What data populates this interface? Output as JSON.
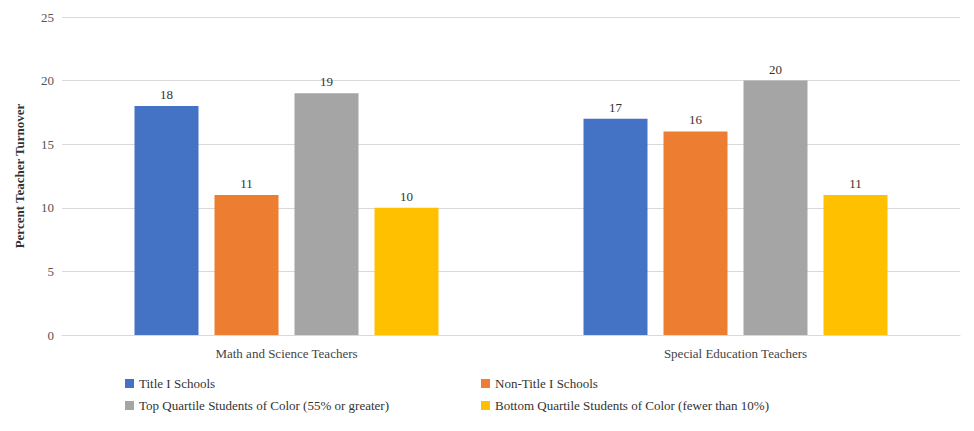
{
  "chart_data": {
    "type": "bar",
    "categories": [
      "Math and Science Teachers",
      "Special Education Teachers"
    ],
    "series": [
      {
        "name": "Title I Schools",
        "color": "#4472c4",
        "values": [
          18,
          17
        ]
      },
      {
        "name": "Non-Title I Schools",
        "color": "#ed7d31",
        "values": [
          11,
          16
        ]
      },
      {
        "name": "Top Quartile Students of Color (55% or greater)",
        "color": "#a5a5a5",
        "values": [
          19,
          20
        ]
      },
      {
        "name": "Bottom Quartile Students of Color (fewer than 10%)",
        "color": "#ffc000",
        "values": [
          10,
          11
        ]
      }
    ],
    "y_label": "Percent Teacher Turnover",
    "ylim": [
      0,
      25
    ],
    "yticks": [
      0,
      5,
      10,
      15,
      20,
      25
    ],
    "grid": true,
    "legend": "bottom",
    "data_labels": true
  }
}
